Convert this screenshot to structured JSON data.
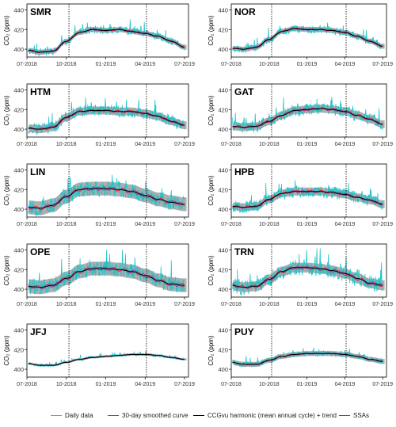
{
  "figure": {
    "ylabel": "CO₂ (ppm)",
    "colors": {
      "daily": "#23c3c9",
      "smoothed": "#9b2fb3",
      "harmonic": "#000000",
      "ssa": "#e02020",
      "band": "#9a9a9a"
    }
  },
  "legend": [
    {
      "label": "Daily data",
      "color": "#23c3c9"
    },
    {
      "label": "30-day smoothed curve",
      "color": "#9b2fb3"
    },
    {
      "label": "CCGvu harmonic (mean annual cycle) + trend",
      "color": "#000000"
    },
    {
      "label": "SSAs",
      "color": "#e02020"
    }
  ],
  "chart_data": [
    {
      "type": "line",
      "title": "SMR",
      "ylabel": "CO₂ (ppm)",
      "xticks": [
        "07-2018",
        "10-2018",
        "01-2019",
        "04-2019",
        "07-2019"
      ],
      "yticks": [
        400,
        420,
        440
      ],
      "ylim": [
        392,
        446
      ],
      "xlim": [
        0,
        12.3
      ],
      "vlines": [
        3.2,
        9.1
      ],
      "band_width": 2.5,
      "trend": {
        "x": [
          0,
          1,
          2,
          3,
          4,
          5,
          6,
          7,
          8,
          9,
          10,
          11,
          12
        ],
        "y": [
          399,
          397,
          398,
          408,
          417,
          420,
          419,
          420,
          418,
          416,
          413,
          408,
          402
        ]
      },
      "daily_amp": 4,
      "seed": 11
    },
    {
      "type": "line",
      "title": "NOR",
      "ylabel": "CO₂ (ppm)",
      "xticks": [
        "07-2018",
        "10-2018",
        "01-2019",
        "04-2019",
        "07-2019"
      ],
      "yticks": [
        400,
        420,
        440
      ],
      "ylim": [
        392,
        446
      ],
      "xlim": [
        0,
        12.3
      ],
      "vlines": [
        3.2,
        9.1
      ],
      "band_width": 2.5,
      "trend": {
        "x": [
          0,
          1,
          2,
          3,
          4,
          5,
          6,
          7,
          8,
          9,
          10,
          11,
          12
        ],
        "y": [
          401,
          400,
          402,
          410,
          418,
          421,
          420,
          420,
          419,
          417,
          413,
          408,
          403
        ]
      },
      "daily_amp": 4,
      "seed": 23
    },
    {
      "type": "line",
      "title": "HTM",
      "ylabel": "CO₂ (ppm)",
      "xticks": [
        "07-2018",
        "10-2018",
        "01-2019",
        "04-2019",
        "07-2019"
      ],
      "yticks": [
        400,
        420,
        440
      ],
      "ylim": [
        392,
        446
      ],
      "xlim": [
        0,
        12.3
      ],
      "vlines": [
        3.2,
        9.1
      ],
      "band_width": 4,
      "trend": {
        "x": [
          0,
          1,
          2,
          3,
          4,
          5,
          6,
          7,
          8,
          9,
          10,
          11,
          12
        ],
        "y": [
          401,
          400,
          402,
          412,
          418,
          419,
          419,
          418,
          418,
          416,
          413,
          408,
          404
        ]
      },
      "daily_amp": 6,
      "seed": 37
    },
    {
      "type": "line",
      "title": "GAT",
      "ylabel": "CO₂ (ppm)",
      "xticks": [
        "07-2018",
        "10-2018",
        "01-2019",
        "04-2019",
        "07-2019"
      ],
      "yticks": [
        400,
        420,
        440
      ],
      "ylim": [
        392,
        446
      ],
      "xlim": [
        0,
        12.3
      ],
      "vlines": [
        3.2,
        9.1
      ],
      "band_width": 4,
      "trend": {
        "x": [
          0,
          1,
          2,
          3,
          4,
          5,
          6,
          7,
          8,
          9,
          10,
          11,
          12
        ],
        "y": [
          403,
          402,
          403,
          408,
          414,
          419,
          420,
          421,
          420,
          418,
          414,
          410,
          405
        ]
      },
      "daily_amp": 6,
      "seed": 41
    },
    {
      "type": "line",
      "title": "LIN",
      "ylabel": "CO₂ (ppm)",
      "xticks": [
        "07-2018",
        "10-2018",
        "01-2019",
        "04-2019",
        "07-2019"
      ],
      "yticks": [
        400,
        420,
        440
      ],
      "ylim": [
        392,
        446
      ],
      "xlim": [
        0,
        12.3
      ],
      "vlines": [
        3.2,
        9.1
      ],
      "band_width": 7,
      "trend": {
        "x": [
          0,
          1,
          2,
          3,
          4,
          5,
          6,
          7,
          8,
          9,
          10,
          11,
          12
        ],
        "y": [
          402,
          401,
          404,
          413,
          420,
          421,
          421,
          420,
          418,
          414,
          410,
          407,
          405
        ]
      },
      "daily_amp": 8,
      "seed": 53
    },
    {
      "type": "line",
      "title": "HPB",
      "ylabel": "CO₂ (ppm)",
      "xticks": [
        "07-2018",
        "10-2018",
        "01-2019",
        "04-2019",
        "07-2019"
      ],
      "yticks": [
        400,
        420,
        440
      ],
      "ylim": [
        392,
        446
      ],
      "xlim": [
        0,
        12.3
      ],
      "vlines": [
        3.2,
        9.1
      ],
      "band_width": 4,
      "trend": {
        "x": [
          0,
          1,
          2,
          3,
          4,
          5,
          6,
          7,
          8,
          9,
          10,
          11,
          12
        ],
        "y": [
          403,
          402,
          403,
          410,
          416,
          418,
          418,
          418,
          417,
          415,
          412,
          409,
          405
        ]
      },
      "daily_amp": 6,
      "seed": 67
    },
    {
      "type": "line",
      "title": "OPE",
      "ylabel": "CO₂ (ppm)",
      "xticks": [
        "07-2018",
        "10-2018",
        "01-2019",
        "04-2019",
        "07-2019"
      ],
      "yticks": [
        400,
        420,
        440
      ],
      "ylim": [
        392,
        446
      ],
      "xlim": [
        0,
        12.3
      ],
      "vlines": [
        3.2,
        9.1
      ],
      "band_width": 7,
      "trend": {
        "x": [
          0,
          1,
          2,
          3,
          4,
          5,
          6,
          7,
          8,
          9,
          10,
          11,
          12
        ],
        "y": [
          403,
          402,
          404,
          411,
          418,
          421,
          421,
          420,
          418,
          414,
          409,
          405,
          404
        ]
      },
      "daily_amp": 8,
      "seed": 71
    },
    {
      "type": "line",
      "title": "TRN",
      "ylabel": "CO₂ (ppm)",
      "xticks": [
        "07-2018",
        "10-2018",
        "01-2019",
        "04-2019",
        "07-2019"
      ],
      "yticks": [
        400,
        420,
        440
      ],
      "ylim": [
        392,
        446
      ],
      "xlim": [
        0,
        12.3
      ],
      "vlines": [
        3.2,
        9.1
      ],
      "band_width": 5,
      "trend": {
        "x": [
          0,
          1,
          2,
          3,
          4,
          5,
          6,
          7,
          8,
          9,
          10,
          11,
          12
        ],
        "y": [
          404,
          402,
          403,
          410,
          418,
          422,
          422,
          421,
          419,
          416,
          411,
          406,
          404
        ]
      },
      "daily_amp": 8,
      "seed": 83
    },
    {
      "type": "line",
      "title": "JFJ",
      "ylabel": "CO₂ (ppm)",
      "xticks": [
        "07-2018",
        "10-2018",
        "01-2019",
        "04-2019",
        "07-2019"
      ],
      "yticks": [
        400,
        420,
        440
      ],
      "ylim": [
        392,
        446
      ],
      "xlim": [
        0,
        12.3
      ],
      "vlines": [
        3.2,
        9.1
      ],
      "band_width": 1,
      "trend": {
        "x": [
          0,
          1,
          2,
          3,
          4,
          5,
          6,
          7,
          8,
          9,
          10,
          11,
          12
        ],
        "y": [
          406,
          404,
          404,
          407,
          410,
          412,
          413,
          414,
          415,
          415,
          414,
          412,
          410
        ]
      },
      "daily_amp": 1.5,
      "seed": 97
    },
    {
      "type": "line",
      "title": "PUY",
      "ylabel": "CO₂ (ppm)",
      "xticks": [
        "07-2018",
        "10-2018",
        "01-2019",
        "04-2019",
        "07-2019"
      ],
      "yticks": [
        400,
        420,
        440
      ],
      "ylim": [
        392,
        446
      ],
      "xlim": [
        0,
        12.3
      ],
      "vlines": [
        3.2,
        9.1
      ],
      "band_width": 2.5,
      "trend": {
        "x": [
          0,
          1,
          2,
          3,
          4,
          5,
          6,
          7,
          8,
          9,
          10,
          11,
          12
        ],
        "y": [
          407,
          405,
          405,
          409,
          413,
          415,
          416,
          416,
          416,
          415,
          413,
          410,
          408
        ]
      },
      "daily_amp": 3,
      "seed": 101
    }
  ]
}
